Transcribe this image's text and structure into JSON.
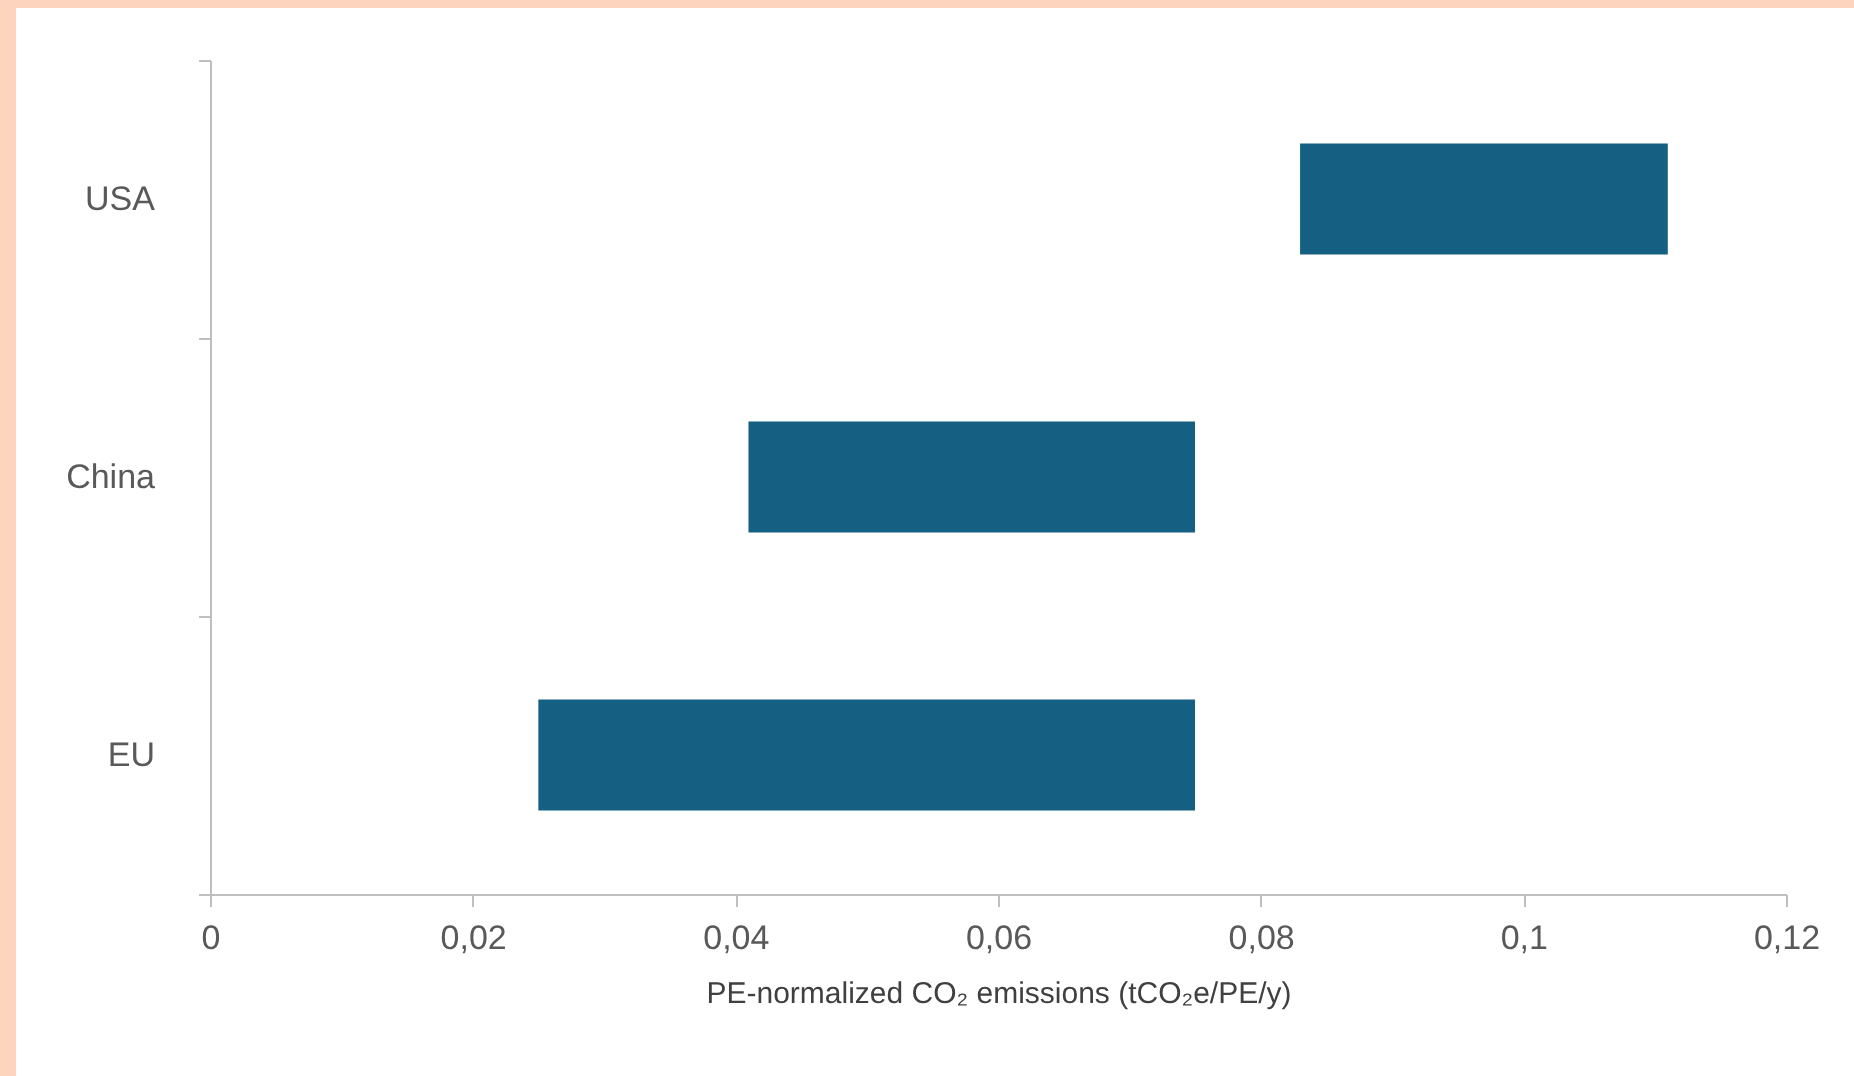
{
  "chart_data": {
    "type": "bar",
    "orientation": "horizontal",
    "xlabel": "PE-normalized CO₂ emissions (tCO₂e/PE/y)",
    "categories": [
      "USA",
      "China",
      "EU"
    ],
    "base": [
      0.083,
      0.041,
      0.025
    ],
    "values": [
      0.028,
      0.034,
      0.05
    ],
    "color": "#155f82",
    "xlim": [
      0,
      0.12
    ],
    "xticks": [
      {
        "value": 0,
        "label": "0"
      },
      {
        "value": 0.02,
        "label": "0,02"
      },
      {
        "value": 0.04,
        "label": "0,04"
      },
      {
        "value": 0.06,
        "label": "0,06"
      },
      {
        "value": 0.08,
        "label": "0,08"
      },
      {
        "value": 0.1,
        "label": "0,1"
      },
      {
        "value": 0.12,
        "label": "0,12"
      }
    ],
    "grid": false
  }
}
